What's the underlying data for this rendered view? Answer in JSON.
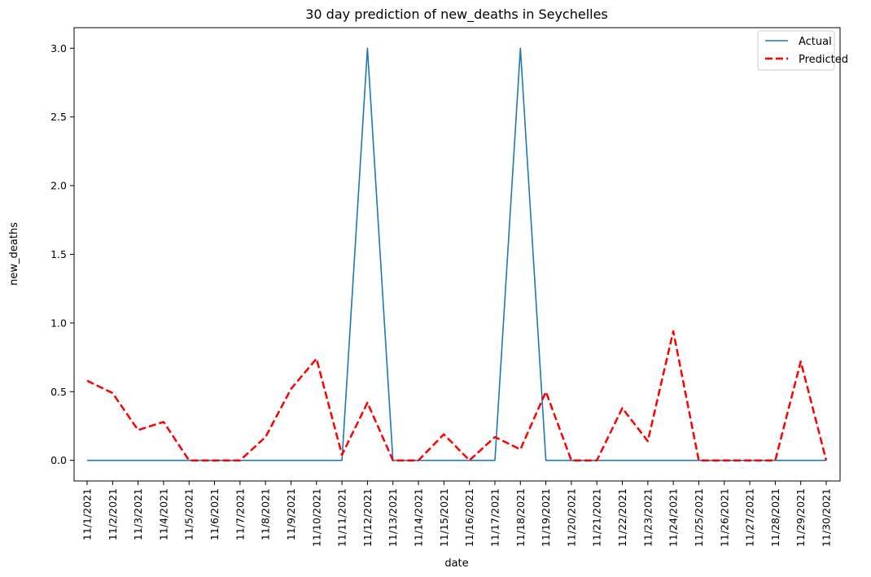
{
  "chart_data": {
    "type": "line",
    "title": "30 day prediction of new_deaths in Seychelles",
    "xlabel": "date",
    "ylabel": "new_deaths",
    "categories": [
      "11/1/2021",
      "11/2/2021",
      "11/3/2021",
      "11/4/2021",
      "11/5/2021",
      "11/6/2021",
      "11/7/2021",
      "11/8/2021",
      "11/9/2021",
      "11/10/2021",
      "11/11/2021",
      "11/12/2021",
      "11/13/2021",
      "11/14/2021",
      "11/15/2021",
      "11/16/2021",
      "11/17/2021",
      "11/18/2021",
      "11/19/2021",
      "11/20/2021",
      "11/21/2021",
      "11/22/2021",
      "11/23/2021",
      "11/24/2021",
      "11/25/2021",
      "11/26/2021",
      "11/27/2021",
      "11/28/2021",
      "11/29/2021",
      "11/30/2021"
    ],
    "yticks": [
      "0.0",
      "0.5",
      "1.0",
      "1.5",
      "2.0",
      "2.5",
      "3.0"
    ],
    "ylim": [
      -0.15,
      3.15
    ],
    "grid": false,
    "legend_position": "top-right",
    "series": [
      {
        "name": "Actual",
        "color": "#1f77b4",
        "style": "solid",
        "values": [
          0,
          0,
          0,
          0,
          0,
          0,
          0,
          0,
          0,
          0,
          0,
          3,
          0,
          0,
          0,
          0,
          0,
          3,
          0,
          0,
          0,
          0,
          0,
          0,
          0,
          0,
          0,
          0,
          0,
          0
        ]
      },
      {
        "name": "Predicted",
        "color": "#ff0000",
        "style": "dashed",
        "values": [
          0.58,
          0.49,
          0.22,
          0.28,
          0.0,
          0.0,
          0.0,
          0.17,
          0.52,
          0.74,
          0.04,
          0.42,
          0.0,
          0.0,
          0.19,
          0.0,
          0.17,
          0.08,
          0.5,
          0.0,
          0.0,
          0.38,
          0.14,
          0.94,
          0.0,
          0.0,
          0.0,
          0.0,
          0.72,
          0.0
        ]
      }
    ]
  }
}
